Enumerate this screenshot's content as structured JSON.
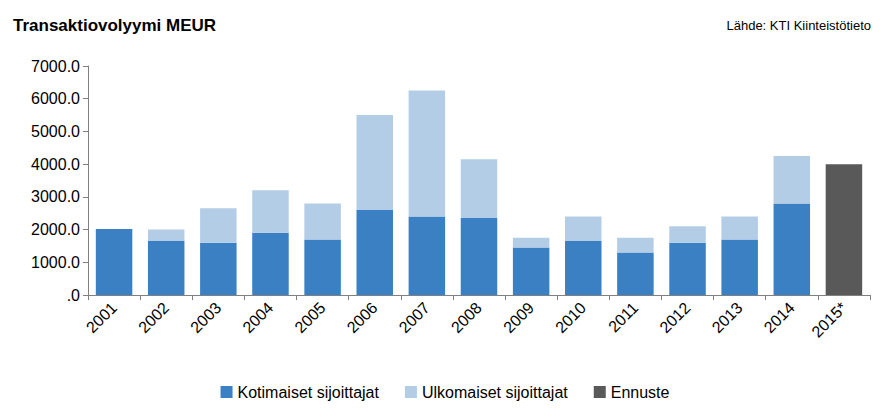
{
  "chart_data": {
    "type": "bar",
    "title": "Transaktiovolyymi MEUR",
    "annotation": "Lähde: KTI Kiinteistötieto",
    "categories": [
      "2001",
      "2002",
      "2003",
      "2004",
      "2005",
      "2006",
      "2007",
      "2008",
      "2009",
      "2010",
      "2011",
      "2012",
      "2013",
      "2014",
      "2015*"
    ],
    "series": [
      {
        "name": "Kotimaiset sijoittajat",
        "color": "#3a80c3",
        "values": [
          2020,
          1650,
          1600,
          1900,
          1700,
          2600,
          2400,
          2350,
          1450,
          1650,
          1300,
          1600,
          1700,
          2800,
          null
        ]
      },
      {
        "name": "Ulkomaiset sijoittajat",
        "color": "#b4cde7",
        "values": [
          0,
          350,
          1050,
          1300,
          1100,
          2900,
          3850,
          1800,
          300,
          750,
          450,
          500,
          700,
          1450,
          null
        ]
      },
      {
        "name": "Ennuste",
        "color": "#595959",
        "values": [
          null,
          null,
          null,
          null,
          null,
          null,
          null,
          null,
          null,
          null,
          null,
          null,
          null,
          null,
          4000
        ]
      }
    ],
    "stacked": true,
    "ylim": [
      0,
      7000
    ],
    "yticks": [
      {
        "value": 0,
        "label": ".0"
      },
      {
        "value": 1000,
        "label": "1000.0"
      },
      {
        "value": 2000,
        "label": "2000.0"
      },
      {
        "value": 3000,
        "label": "3000.0"
      },
      {
        "value": 4000,
        "label": "4000.0"
      },
      {
        "value": 5000,
        "label": "5000.0"
      },
      {
        "value": 6000,
        "label": "6000.0"
      },
      {
        "value": 7000,
        "label": "7000.0"
      }
    ],
    "grid": false,
    "legend": "bottom"
  }
}
